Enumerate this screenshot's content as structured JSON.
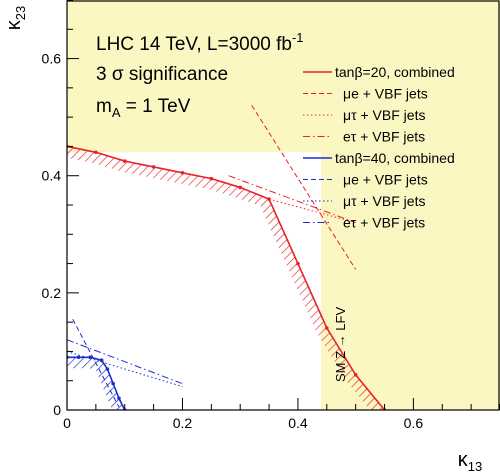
{
  "chart_data": {
    "type": "line",
    "xlabel": "κ13",
    "ylabel": "κ23",
    "xlim": [
      0,
      0.75
    ],
    "ylim": [
      0,
      0.7
    ],
    "x_ticks": [
      0,
      0.2,
      0.4,
      0.6
    ],
    "x_tick_labels": [
      "0",
      "0.2",
      "0.4",
      "0.6"
    ],
    "y_ticks": [
      0,
      0.2,
      0.4,
      0.6
    ],
    "y_tick_labels": [
      "0",
      "0.2",
      "0.4",
      "0.6"
    ],
    "annotations": {
      "line1": "LHC 14 TeV, L=3000 fb",
      "line1_sup": "-1",
      "line2": "3 σ significance",
      "line3": "m",
      "line3_sub": "A",
      "line3_rest": " = 1 TeV",
      "sm_label": "SM Z → LFV"
    },
    "excluded_region": {
      "color": "#fbf7c3",
      "allowed_box_x": [
        0,
        0.44
      ],
      "allowed_box_y": [
        0,
        0.44
      ]
    },
    "series": [
      {
        "name": "tanβ=20, combined",
        "color": "#e8222b",
        "style": "solid",
        "hatched": true,
        "x": [
          0,
          0.05,
          0.1,
          0.15,
          0.2,
          0.25,
          0.3,
          0.35,
          0.4,
          0.45,
          0.5,
          0.55
        ],
        "y": [
          0.45,
          0.44,
          0.425,
          0.415,
          0.405,
          0.395,
          0.38,
          0.36,
          0.25,
          0.14,
          0.06,
          0.0
        ]
      },
      {
        "name": "μe + VBF jets",
        "color": "#e8222b",
        "style": "dashed",
        "x": [
          0.32,
          0.5
        ],
        "y": [
          0.52,
          0.24
        ]
      },
      {
        "name": "μτ + VBF jets",
        "color": "#e8222b",
        "style": "dotted",
        "x": [
          0.35,
          0.5
        ],
        "y": [
          0.36,
          0.32
        ]
      },
      {
        "name": "eτ + VBF jets",
        "color": "#e8222b",
        "style": "dashdot",
        "x": [
          0.28,
          0.5
        ],
        "y": [
          0.4,
          0.32
        ]
      },
      {
        "name": "tanβ=40, combined",
        "color": "#1a2fcc",
        "style": "solid",
        "hatched": true,
        "x": [
          0,
          0.02,
          0.04,
          0.06,
          0.07,
          0.08,
          0.09,
          0.1
        ],
        "y": [
          0.09,
          0.09,
          0.09,
          0.085,
          0.07,
          0.045,
          0.02,
          0.0
        ]
      },
      {
        "name": "μe + VBF jets",
        "color": "#1a2fcc",
        "style": "dashed",
        "x": [
          0.01,
          0.09
        ],
        "y": [
          0.155,
          0.005
        ]
      },
      {
        "name": "μτ + VBF jets",
        "color": "#1a2fcc",
        "style": "dotted",
        "x": [
          0.0,
          0.2
        ],
        "y": [
          0.1,
          0.04
        ]
      },
      {
        "name": "eτ + VBF jets",
        "color": "#1a2fcc",
        "style": "dashdot",
        "x": [
          0.0,
          0.2
        ],
        "y": [
          0.12,
          0.045
        ]
      }
    ],
    "legend_placement": "top-right",
    "grid": false
  }
}
